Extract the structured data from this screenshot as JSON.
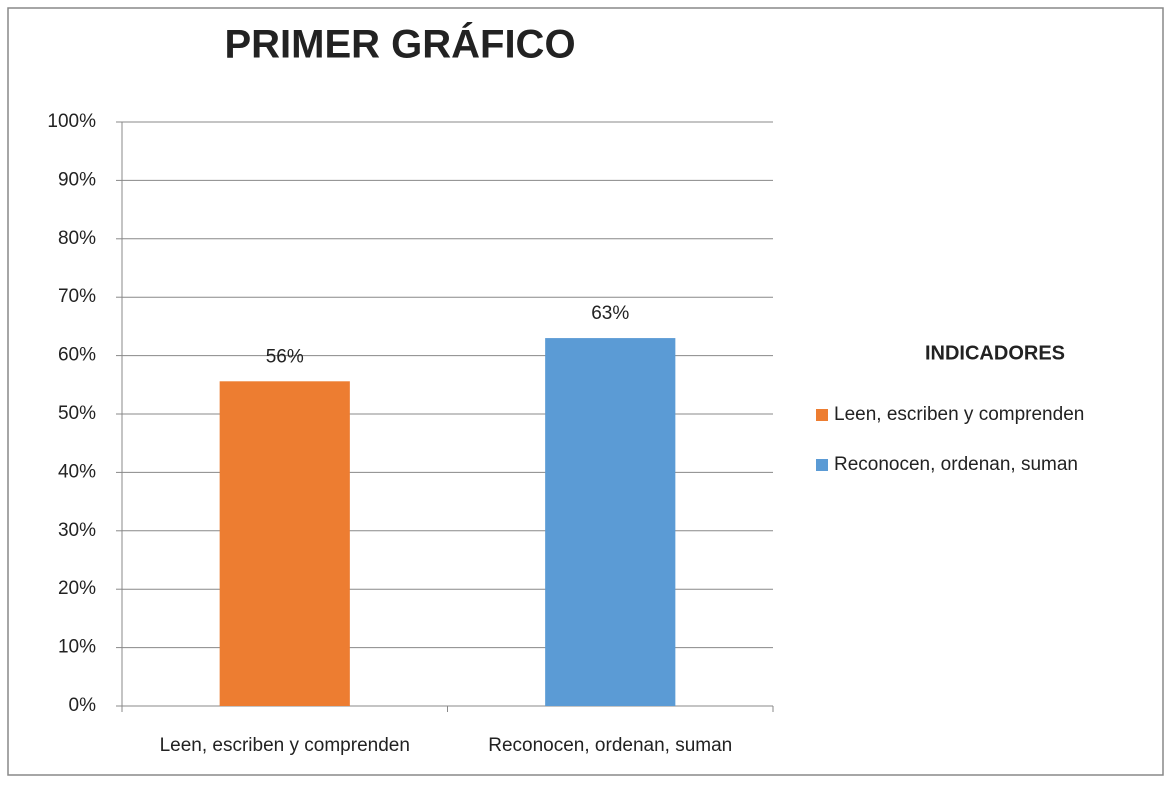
{
  "chart_data": {
    "type": "bar",
    "title": "PRIMER GRÁFICO",
    "categories": [
      "Leen, escriben y comprenden",
      "Reconocen, ordenan, suman"
    ],
    "values": [
      55.6,
      63
    ],
    "value_labels": [
      "56%",
      "63%"
    ],
    "colors": [
      "#ed7d31",
      "#5b9bd5"
    ],
    "ylim": [
      0,
      100
    ],
    "yticks": [
      {
        "value": 0,
        "label": "0%"
      },
      {
        "value": 10,
        "label": "10%"
      },
      {
        "value": 20,
        "label": "20%"
      },
      {
        "value": 30,
        "label": "30%"
      },
      {
        "value": 40,
        "label": "40%"
      },
      {
        "value": 50,
        "label": "50%"
      },
      {
        "value": 60,
        "label": "60%"
      },
      {
        "value": 70,
        "label": "70%"
      },
      {
        "value": 80,
        "label": "80%"
      },
      {
        "value": 90,
        "label": "90%"
      },
      {
        "value": 100,
        "label": "100%"
      }
    ],
    "grid": true,
    "legend": {
      "title": "INDICADORES",
      "position": "right"
    }
  }
}
